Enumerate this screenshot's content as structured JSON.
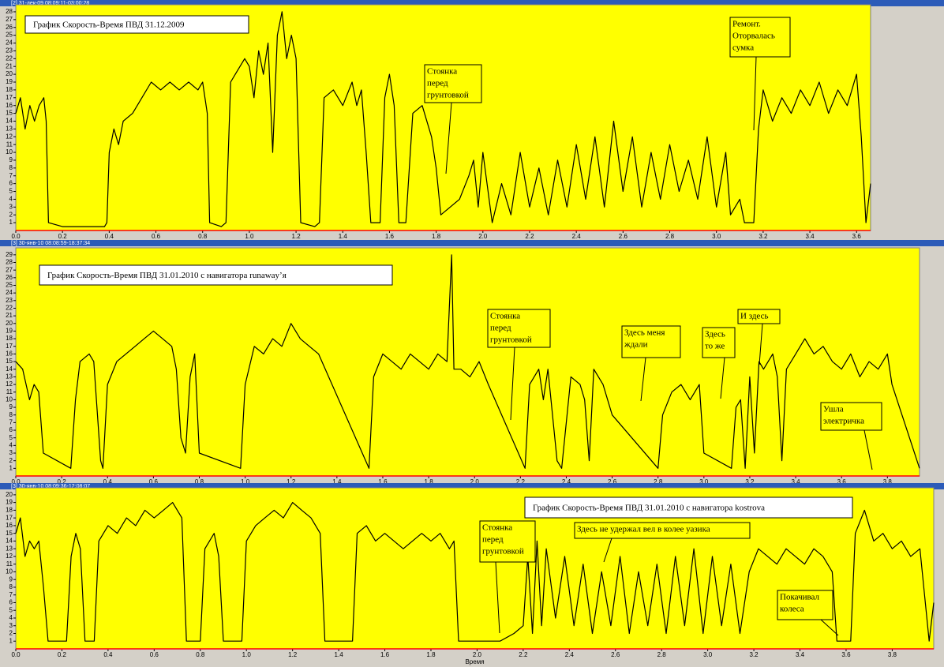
{
  "chart_data": [
    {
      "type": "line",
      "window_title": "[2] 31-дек-09 08:09:11-03:00:28",
      "title": "График Скорость-Время ПВД 31.12.2009",
      "color": "#000000",
      "grid": false,
      "xlim": [
        0,
        3.66
      ],
      "ylim": [
        0,
        28.5
      ],
      "xticks": [
        {
          "value": 0,
          "label": "0.0"
        },
        0.2,
        0.4,
        0.6,
        0.8,
        {
          "value": 1,
          "label": "1.0"
        },
        1.2,
        1.4,
        1.6,
        1.8,
        {
          "value": 2,
          "label": "2.0"
        },
        2.2,
        2.4,
        2.6,
        2.8,
        {
          "value": 3,
          "label": "3.0"
        },
        3.2,
        3.4,
        3.6
      ],
      "yticks": [
        1,
        2,
        3,
        4,
        5,
        6,
        7,
        8,
        9,
        10,
        11,
        12,
        13,
        14,
        15,
        16,
        17,
        18,
        19,
        20,
        21,
        22,
        23,
        24,
        25,
        26,
        27,
        28
      ],
      "x": [
        0,
        0.02,
        0.04,
        0.06,
        0.08,
        0.1,
        0.12,
        0.13,
        0.14,
        0.2,
        0.3,
        0.38,
        0.39,
        0.4,
        0.42,
        0.44,
        0.46,
        0.5,
        0.54,
        0.58,
        0.62,
        0.66,
        0.7,
        0.74,
        0.78,
        0.8,
        0.82,
        0.83,
        0.88,
        0.9,
        0.92,
        0.94,
        0.98,
        1.0,
        1.02,
        1.04,
        1.06,
        1.08,
        1.1,
        1.12,
        1.14,
        1.16,
        1.18,
        1.2,
        1.22,
        1.28,
        1.3,
        1.32,
        1.36,
        1.4,
        1.44,
        1.46,
        1.48,
        1.5,
        1.52,
        1.56,
        1.58,
        1.6,
        1.62,
        1.64,
        1.67,
        1.7,
        1.74,
        1.78,
        1.8,
        1.82,
        1.86,
        1.9,
        1.94,
        1.96,
        1.98,
        2.0,
        2.04,
        2.08,
        2.12,
        2.16,
        2.2,
        2.24,
        2.28,
        2.32,
        2.36,
        2.4,
        2.44,
        2.48,
        2.52,
        2.56,
        2.6,
        2.64,
        2.68,
        2.72,
        2.76,
        2.8,
        2.84,
        2.88,
        2.92,
        2.96,
        3.0,
        3.04,
        3.06,
        3.1,
        3.12,
        3.16,
        3.18,
        3.2,
        3.24,
        3.28,
        3.32,
        3.36,
        3.4,
        3.44,
        3.48,
        3.52,
        3.56,
        3.6,
        3.62,
        3.64,
        3.66
      ],
      "values": [
        15,
        17,
        13,
        16,
        14,
        16,
        17,
        14,
        1,
        0.5,
        0.5,
        0.5,
        1,
        10,
        13,
        11,
        14,
        15,
        17,
        19,
        18,
        19,
        18,
        19,
        18,
        19,
        15,
        1,
        0.5,
        1,
        19,
        20,
        22,
        21,
        17,
        23,
        20,
        24,
        10,
        25,
        28,
        22,
        25,
        22,
        1,
        0.5,
        1,
        17,
        18,
        16,
        19,
        16,
        18,
        10,
        1,
        1,
        17,
        20,
        16,
        1,
        1,
        15,
        16,
        12,
        8,
        2,
        3,
        4,
        7,
        9,
        3,
        10,
        1,
        6,
        2,
        10,
        3,
        8,
        2,
        9,
        3,
        11,
        4,
        12,
        3,
        14,
        5,
        12,
        3,
        10,
        4,
        11,
        5,
        9,
        4,
        12,
        3,
        10,
        2,
        4,
        1,
        1,
        13,
        18,
        14,
        17,
        15,
        18,
        16,
        19,
        15,
        18,
        16,
        20,
        12,
        1,
        6
      ],
      "annotations": [
        [
          "Стоянка",
          "перед",
          "грунтовкой"
        ],
        [
          "Ремонт.",
          "Оторвалась",
          "сумка"
        ]
      ]
    },
    {
      "type": "line",
      "window_title": "[3] 30-янв-10 08:08:59-18:37:34",
      "title": "График Скорость-Время ПВД 31.01.2010 с навигатора runaway’я",
      "color": "#000000",
      "grid": false,
      "xlim": [
        0,
        3.94
      ],
      "ylim": [
        0,
        29.5
      ],
      "xticks": [
        {
          "value": 0,
          "label": "0.0"
        },
        0.2,
        0.4,
        0.6,
        0.8,
        {
          "value": 1,
          "label": "1.0"
        },
        1.2,
        1.4,
        1.6,
        1.8,
        {
          "value": 2,
          "label": "2.0"
        },
        2.2,
        2.4,
        2.6,
        2.8,
        {
          "value": 3,
          "label": "3.0"
        },
        3.2,
        3.4,
        3.6,
        3.8
      ],
      "yticks": [
        1,
        2,
        3,
        4,
        5,
        6,
        7,
        8,
        9,
        10,
        11,
        12,
        13,
        14,
        15,
        16,
        17,
        18,
        19,
        20,
        21,
        22,
        23,
        24,
        25,
        26,
        27,
        28,
        29
      ],
      "x": [
        0,
        0.03,
        0.06,
        0.08,
        0.1,
        0.12,
        0.24,
        0.26,
        0.28,
        0.32,
        0.34,
        0.37,
        0.38,
        0.4,
        0.44,
        0.48,
        0.52,
        0.56,
        0.6,
        0.64,
        0.68,
        0.7,
        0.72,
        0.74,
        0.76,
        0.78,
        0.8,
        0.98,
        1.0,
        1.04,
        1.08,
        1.12,
        1.16,
        1.2,
        1.24,
        1.28,
        1.32,
        1.54,
        1.56,
        1.6,
        1.64,
        1.68,
        1.72,
        1.76,
        1.8,
        1.84,
        1.88,
        1.9,
        1.91,
        1.94,
        1.98,
        2.02,
        2.06,
        2.22,
        2.24,
        2.28,
        2.3,
        2.32,
        2.36,
        2.38,
        2.42,
        2.46,
        2.48,
        2.5,
        2.52,
        2.56,
        2.6,
        2.8,
        2.82,
        2.86,
        2.9,
        2.94,
        2.98,
        3.0,
        3.12,
        3.14,
        3.16,
        3.18,
        3.2,
        3.22,
        3.24,
        3.26,
        3.3,
        3.32,
        3.34,
        3.36,
        3.4,
        3.44,
        3.48,
        3.52,
        3.56,
        3.6,
        3.64,
        3.68,
        3.72,
        3.76,
        3.8,
        3.82,
        3.94
      ],
      "values": [
        15,
        14,
        10,
        12,
        11,
        3,
        1,
        10,
        15,
        16,
        15,
        2,
        1,
        12,
        15,
        16,
        17,
        18,
        19,
        18,
        17,
        14,
        5,
        3,
        13,
        16,
        3,
        1,
        12,
        17,
        16,
        18,
        17,
        20,
        18,
        17,
        16,
        1,
        13,
        16,
        15,
        14,
        16,
        15,
        14,
        16,
        15,
        29,
        14,
        14,
        13,
        15,
        12,
        1,
        12,
        14,
        10,
        14,
        2,
        1,
        13,
        12,
        10,
        2,
        14,
        12,
        8,
        1,
        8,
        11,
        12,
        10,
        12,
        3,
        1,
        9,
        10,
        1,
        13,
        3,
        15,
        14,
        16,
        13,
        2,
        14,
        16,
        18,
        16,
        17,
        15,
        14,
        16,
        13,
        15,
        14,
        16,
        12,
        1
      ],
      "annotations": [
        [
          "Стоянка",
          "перед",
          "грунтовкой"
        ],
        [
          "Здесь меня",
          "ждали"
        ],
        [
          "Здесь",
          "то же"
        ],
        [
          "И здесь"
        ],
        [
          "Ушла",
          "электричка"
        ]
      ]
    },
    {
      "type": "line",
      "window_title": "[3] 30-янв-10 08:09:36-12:08:07",
      "title": "График Скорость-Время ПВД 31.01.2010 с навигатора kostrova",
      "x_label": "Время",
      "color": "#000000",
      "grid": false,
      "xlim": [
        0,
        3.98
      ],
      "ylim": [
        0,
        20.5
      ],
      "xticks": [
        {
          "value": 0,
          "label": "0.0"
        },
        0.2,
        0.4,
        0.6,
        0.8,
        {
          "value": 1,
          "label": "1.0"
        },
        1.2,
        1.4,
        1.6,
        1.8,
        {
          "value": 2,
          "label": "2.0"
        },
        2.2,
        2.4,
        2.6,
        2.8,
        {
          "value": 3,
          "label": "3.0"
        },
        3.2,
        3.4,
        3.6,
        3.8
      ],
      "yticks": [
        1,
        2,
        3,
        4,
        5,
        6,
        7,
        8,
        9,
        10,
        11,
        12,
        13,
        14,
        15,
        16,
        17,
        18,
        19,
        20
      ],
      "x": [
        0,
        0.02,
        0.04,
        0.06,
        0.08,
        0.1,
        0.12,
        0.14,
        0.22,
        0.24,
        0.26,
        0.28,
        0.3,
        0.34,
        0.36,
        0.4,
        0.44,
        0.48,
        0.52,
        0.56,
        0.6,
        0.64,
        0.68,
        0.72,
        0.74,
        0.78,
        0.8,
        0.82,
        0.86,
        0.88,
        0.9,
        0.98,
        1.0,
        1.04,
        1.08,
        1.12,
        1.16,
        1.2,
        1.24,
        1.28,
        1.32,
        1.34,
        1.46,
        1.48,
        1.52,
        1.56,
        1.6,
        1.64,
        1.68,
        1.72,
        1.76,
        1.8,
        1.84,
        1.88,
        1.9,
        1.92,
        2.0,
        2.1,
        2.16,
        2.2,
        2.22,
        2.24,
        2.26,
        2.28,
        2.3,
        2.34,
        2.38,
        2.42,
        2.46,
        2.5,
        2.54,
        2.58,
        2.62,
        2.66,
        2.7,
        2.74,
        2.78,
        2.82,
        2.86,
        2.9,
        2.94,
        2.98,
        3.02,
        3.06,
        3.1,
        3.14,
        3.18,
        3.22,
        3.26,
        3.3,
        3.34,
        3.38,
        3.42,
        3.46,
        3.5,
        3.54,
        3.56,
        3.62,
        3.64,
        3.68,
        3.72,
        3.76,
        3.8,
        3.84,
        3.88,
        3.92,
        3.96,
        3.98
      ],
      "values": [
        15,
        17,
        12,
        14,
        13,
        14,
        8,
        1,
        1,
        12,
        15,
        13,
        1,
        1,
        14,
        16,
        15,
        17,
        16,
        18,
        17,
        18,
        19,
        17,
        1,
        1,
        1,
        13,
        15,
        12,
        1,
        1,
        14,
        16,
        17,
        18,
        17,
        19,
        18,
        17,
        15,
        1,
        1,
        15,
        16,
        14,
        15,
        14,
        13,
        14,
        15,
        14,
        15,
        13,
        14,
        1,
        1,
        1,
        2,
        3,
        12,
        2,
        14,
        3,
        13,
        4,
        12,
        3,
        11,
        2,
        10,
        3,
        12,
        2,
        10,
        3,
        11,
        2,
        12,
        3,
        13,
        2,
        12,
        3,
        11,
        2,
        10,
        13,
        12,
        11,
        13,
        12,
        11,
        13,
        12,
        10,
        1,
        1,
        15,
        18,
        14,
        15,
        13,
        14,
        12,
        13,
        1,
        6
      ],
      "annotations": [
        [
          "Стоянка",
          "перед",
          "грунтовкой"
        ],
        [
          "Здесь не удержал вел в колее уазика"
        ],
        [
          "Покачивал",
          "колеса"
        ]
      ]
    }
  ]
}
